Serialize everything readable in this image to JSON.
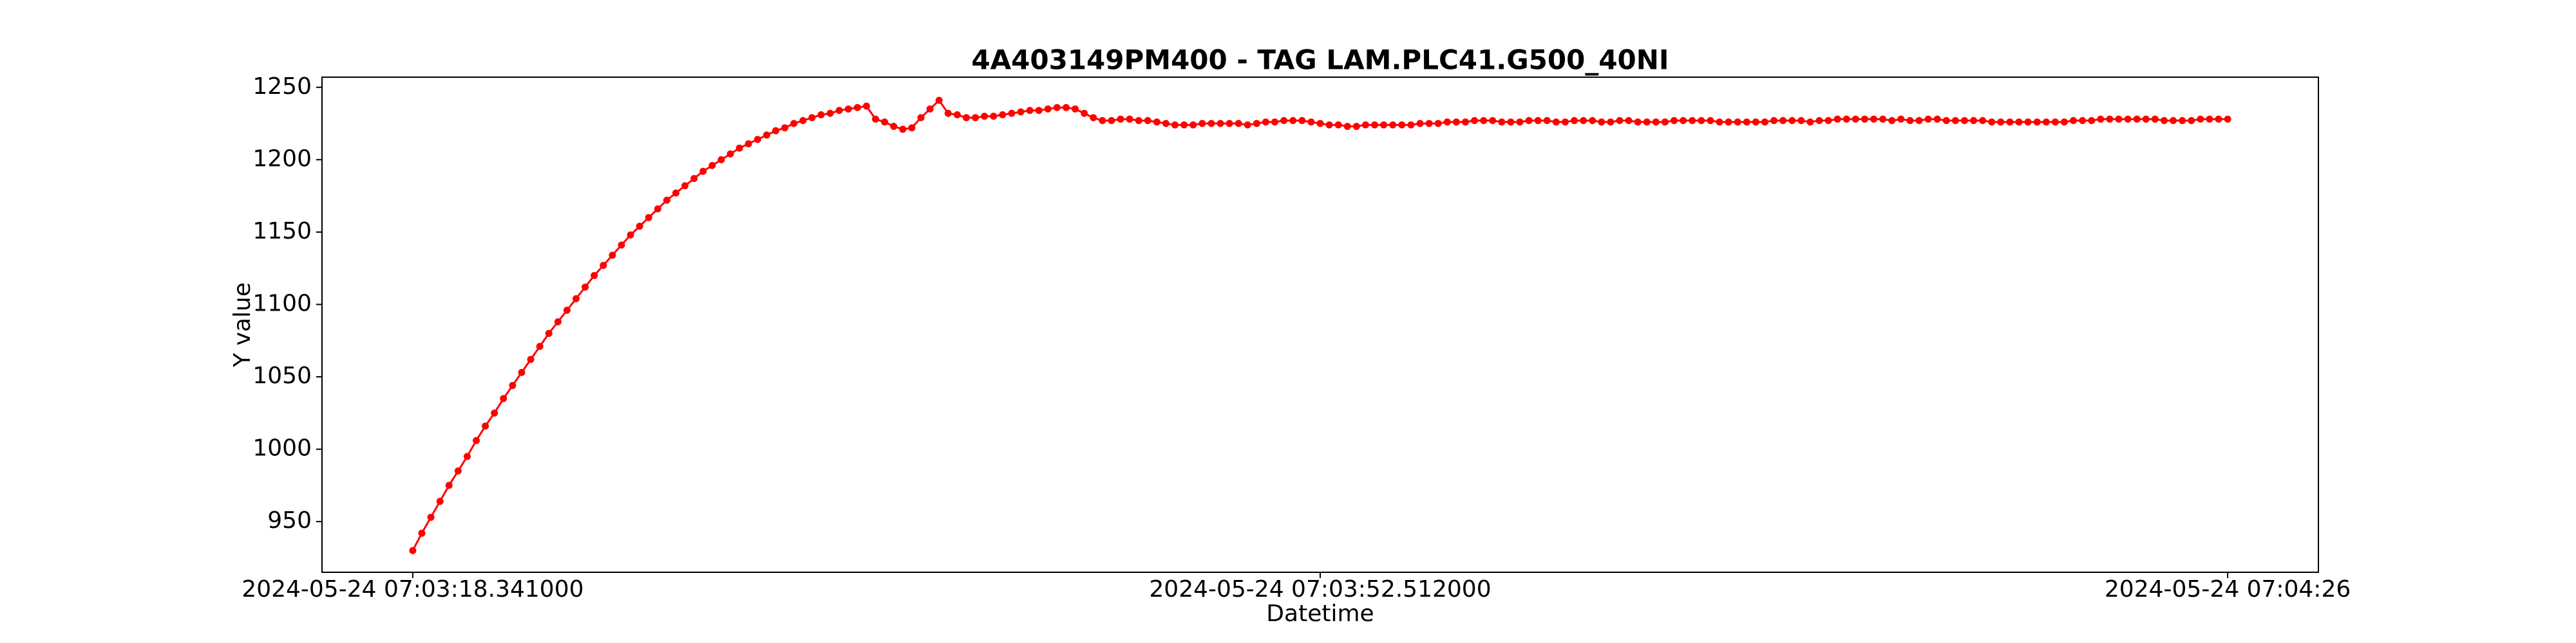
{
  "chart_data": {
    "type": "line",
    "title": "4A403149PM400 - TAG LAM.PLC41.G500_40NI",
    "x_label": "Datetime",
    "y_label": "Y value",
    "color": "#ff0000",
    "marker": true,
    "grid": false,
    "categories": [
      "2024-05-24 07:03:18.341000",
      null,
      null,
      null,
      null,
      null,
      null,
      null,
      null,
      null,
      null,
      null,
      null,
      null,
      null,
      null,
      null,
      null,
      null,
      null,
      null,
      null,
      null,
      null,
      null,
      null,
      null,
      null,
      null,
      null,
      null,
      null,
      null,
      null,
      null,
      null,
      null,
      null,
      null,
      null,
      null,
      null,
      null,
      null,
      null,
      null,
      null,
      null,
      null,
      null,
      null,
      null,
      null,
      null,
      null,
      null,
      null,
      null,
      null,
      null,
      null,
      null,
      null,
      null,
      null,
      null,
      null,
      null,
      null,
      null,
      null,
      null,
      null,
      null,
      null,
      null,
      null,
      null,
      null,
      null,
      null,
      null,
      null,
      null,
      null,
      null,
      null,
      null,
      null,
      null,
      null,
      null,
      null,
      null,
      null,
      null,
      null,
      null,
      null,
      null,
      "2024-05-24 07:03:52.512000",
      null,
      null,
      null,
      null,
      null,
      null,
      null,
      null,
      null,
      null,
      null,
      null,
      null,
      null,
      null,
      null,
      null,
      null,
      null,
      null,
      null,
      null,
      null,
      null,
      null,
      null,
      null,
      null,
      null,
      null,
      null,
      null,
      null,
      null,
      null,
      null,
      null,
      null,
      null,
      null,
      null,
      null,
      null,
      null,
      null,
      null,
      null,
      null,
      null,
      null,
      null,
      null,
      null,
      null,
      null,
      null,
      null,
      null,
      null,
      null,
      null,
      null,
      null,
      null,
      null,
      null,
      null,
      null,
      null,
      null,
      null,
      null,
      null,
      null,
      null,
      null,
      null,
      null,
      null,
      null,
      null,
      null,
      null,
      null,
      null,
      null,
      null,
      null,
      null,
      null,
      null,
      null,
      null,
      null,
      null,
      null,
      null,
      null,
      null,
      "2024-05-24 07:04:26"
    ],
    "values": [
      930,
      942,
      953,
      964,
      975,
      985,
      995,
      1006,
      1016,
      1025,
      1035,
      1044,
      1053,
      1062,
      1071,
      1080,
      1088,
      1096,
      1104,
      1112,
      1120,
      1127,
      1134,
      1141,
      1148,
      1154,
      1160,
      1166,
      1172,
      1177,
      1182,
      1187,
      1192,
      1196,
      1200,
      1204,
      1208,
      1211,
      1214,
      1217,
      1220,
      1222,
      1225,
      1227,
      1229,
      1231,
      1232,
      1234,
      1235,
      1236,
      1237,
      1228,
      1226,
      1223,
      1221,
      1222,
      1229,
      1235,
      1241,
      1232,
      1231,
      1229,
      1229,
      1230,
      1230,
      1231,
      1232,
      1233,
      1234,
      1234,
      1235,
      1236,
      1236,
      1235,
      1232,
      1229,
      1227,
      1227,
      1228,
      1228,
      1227,
      1227,
      1226,
      1225,
      1224,
      1224,
      1224,
      1225,
      1225,
      1225,
      1225,
      1225,
      1224,
      1225,
      1226,
      1226,
      1227,
      1227,
      1227,
      1226,
      1225,
      1224,
      1224,
      1223,
      1223,
      1224,
      1224,
      1224,
      1224,
      1224,
      1224,
      1225,
      1225,
      1225,
      1226,
      1226,
      1226,
      1227,
      1227,
      1227,
      1226,
      1226,
      1226,
      1227,
      1227,
      1227,
      1226,
      1226,
      1227,
      1227,
      1227,
      1226,
      1226,
      1227,
      1227,
      1226,
      1226,
      1226,
      1226,
      1227,
      1227,
      1227,
      1227,
      1227,
      1226,
      1226,
      1226,
      1226,
      1226,
      1226,
      1227,
      1227,
      1227,
      1227,
      1226,
      1227,
      1227,
      1228,
      1228,
      1228,
      1228,
      1228,
      1228,
      1227,
      1228,
      1227,
      1227,
      1228,
      1228,
      1227,
      1227,
      1227,
      1227,
      1227,
      1226,
      1226,
      1226,
      1226,
      1226,
      1226,
      1226,
      1226,
      1226,
      1227,
      1227,
      1227,
      1228,
      1228,
      1228,
      1228,
      1228,
      1228,
      1228,
      1227,
      1227,
      1227,
      1227,
      1228,
      1228,
      1228,
      1228
    ],
    "xlim": [
      -10,
      210
    ],
    "ylim": [
      915,
      1257
    ],
    "yticks": [
      950,
      1000,
      1050,
      1100,
      1150,
      1200,
      1250
    ]
  }
}
